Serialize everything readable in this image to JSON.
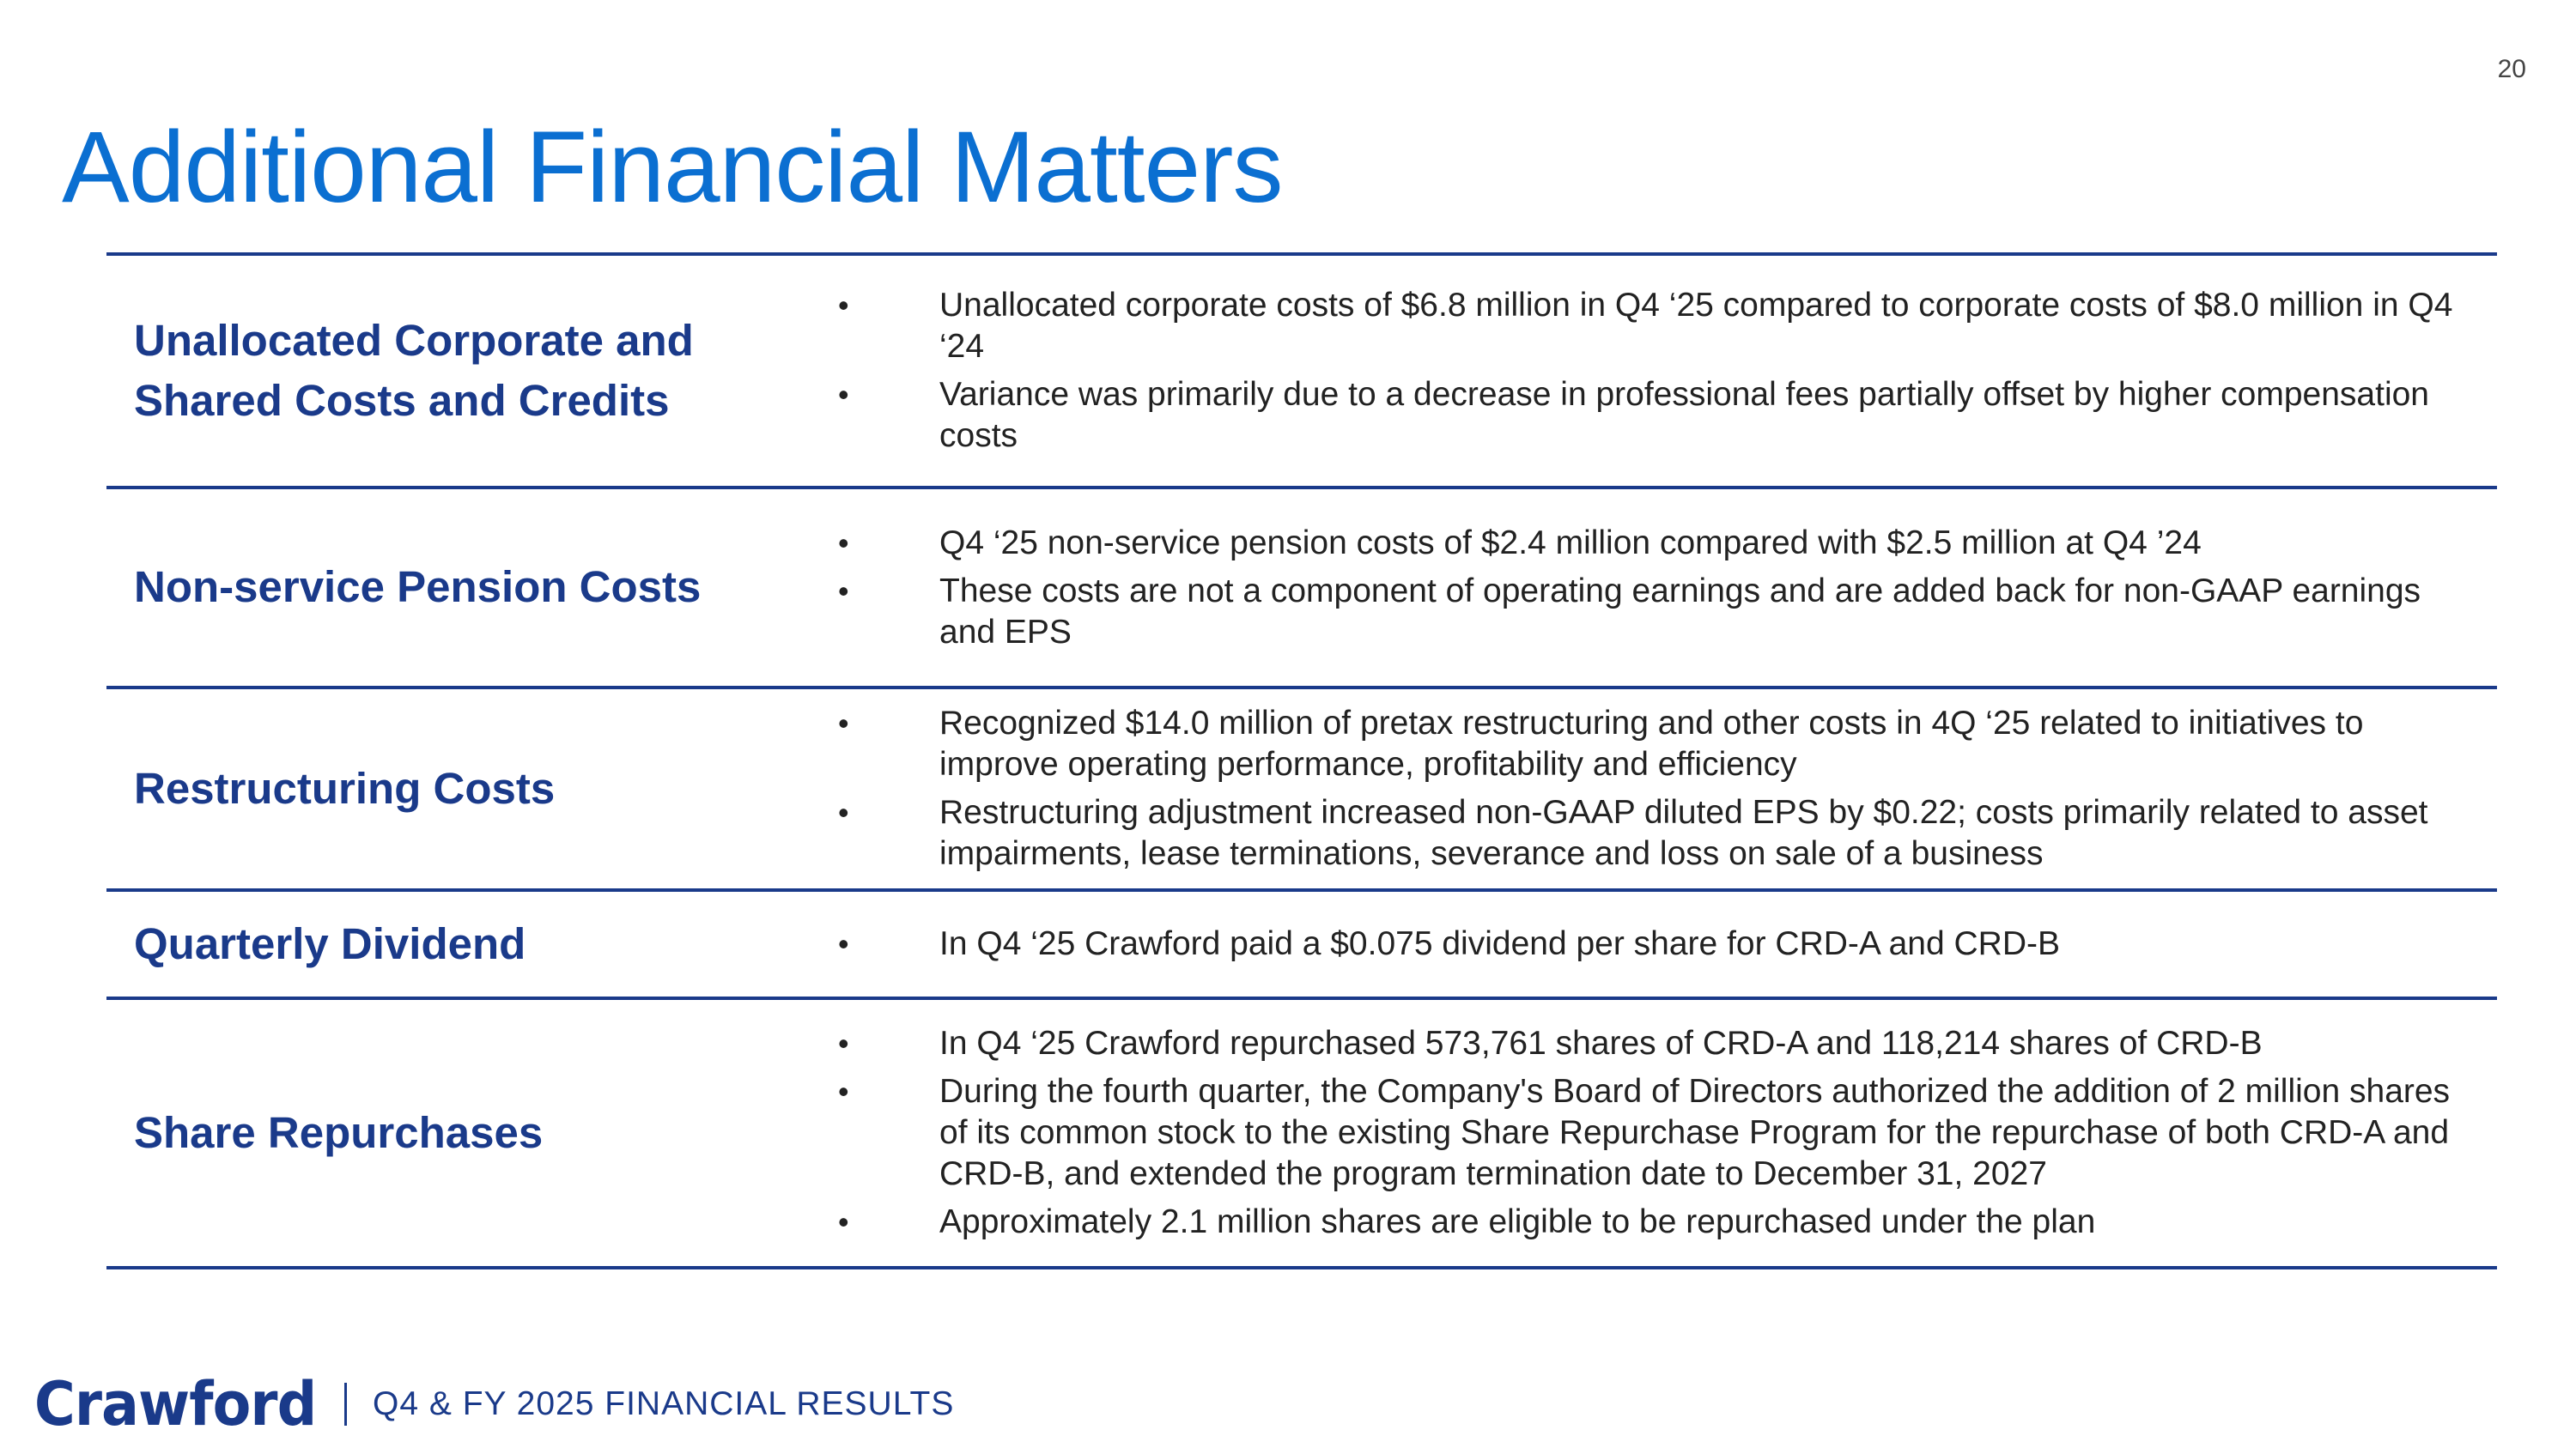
{
  "slide": {
    "title": "Additional Financial Matters",
    "page_number": "20"
  },
  "sections": [
    {
      "label": "Unallocated Corporate and Shared Costs and Credits",
      "points": [
        "Unallocated corporate costs of $6.8 million in Q4 ‘25 compared to corporate costs of $8.0 million in Q4 ‘24",
        "Variance was primarily due to a decrease in professional fees partially offset by higher compensation costs"
      ]
    },
    {
      "label": "Non-service Pension Costs",
      "points": [
        "Q4 ‘25 non-service pension costs of $2.4 million compared with $2.5 million at Q4 ’24",
        "These costs are not a component of operating earnings and are added back for non-GAAP earnings and EPS"
      ]
    },
    {
      "label": "Restructuring Costs",
      "points": [
        "Recognized $14.0 million of pretax restructuring and other costs in 4Q ‘25 related to initiatives to improve operating performance, profitability and efficiency",
        "Restructuring adjustment increased non-GAAP diluted EPS by $0.22; costs primarily related to asset impairments, lease terminations, severance and loss on sale of a business"
      ]
    },
    {
      "label": "Quarterly Dividend",
      "points": [
        "In Q4 ‘25 Crawford paid a $0.075 dividend per share for CRD-A and CRD-B"
      ]
    },
    {
      "label": "Share Repurchases",
      "points": [
        "In Q4 ‘25 Crawford repurchased 573,761 shares of CRD-A and 118,214 shares of CRD-B",
        "During the fourth quarter, the Company's Board of Directors authorized the addition of 2 million shares of its common stock to the existing Share Repurchase Program for the repurchase of both CRD-A and CRD-B, and extended the program termination date to December 31, 2027",
        "Approximately 2.1 million shares are eligible to be repurchased under the plan"
      ]
    }
  ],
  "footer": {
    "logo_text": "Crawford",
    "subtitle": "Q4 & FY 2025 FINANCIAL RESULTS"
  },
  "colors": {
    "title": "#0b6fd1",
    "navy": "#1a3a8a",
    "body_text": "#222222"
  }
}
